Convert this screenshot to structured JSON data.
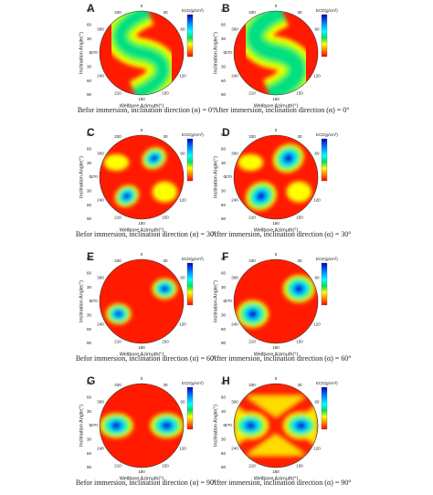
{
  "labels": {
    "y_axis": "Inclination Angle(°)",
    "x_axis": "Wellbore Azimuth(°)",
    "colorbar": "ECD(g/cm³)"
  },
  "azimuth_ticks": [
    "0",
    "30",
    "60",
    "90",
    "120",
    "150",
    "180",
    "210",
    "240",
    "270",
    "300",
    "330"
  ],
  "inclination_ticks": [
    "90",
    "60",
    "30",
    "0",
    "30",
    "60",
    "90"
  ],
  "panels": [
    {
      "letter": "A",
      "caption": "Befor immersion, inclination direction (α) = 0°"
    },
    {
      "letter": "B",
      "caption": "After immersion, inclination direction (α) = 0°"
    },
    {
      "letter": "C",
      "caption": "Befor immersion, inclination direction (α) = 30°"
    },
    {
      "letter": "D",
      "caption": "After immersion, inclination direction (α) = 30°"
    },
    {
      "letter": "E",
      "caption": "Befor immersion, inclination direction (α) = 60°"
    },
    {
      "letter": "F",
      "caption": "After immersion, inclination direction (α) = 60°"
    },
    {
      "letter": "G",
      "caption": "Befor immersion, inclination direction (α) = 90°"
    },
    {
      "letter": "H",
      "caption": "After immersion, inclination direction (α) = 90°"
    }
  ]
}
